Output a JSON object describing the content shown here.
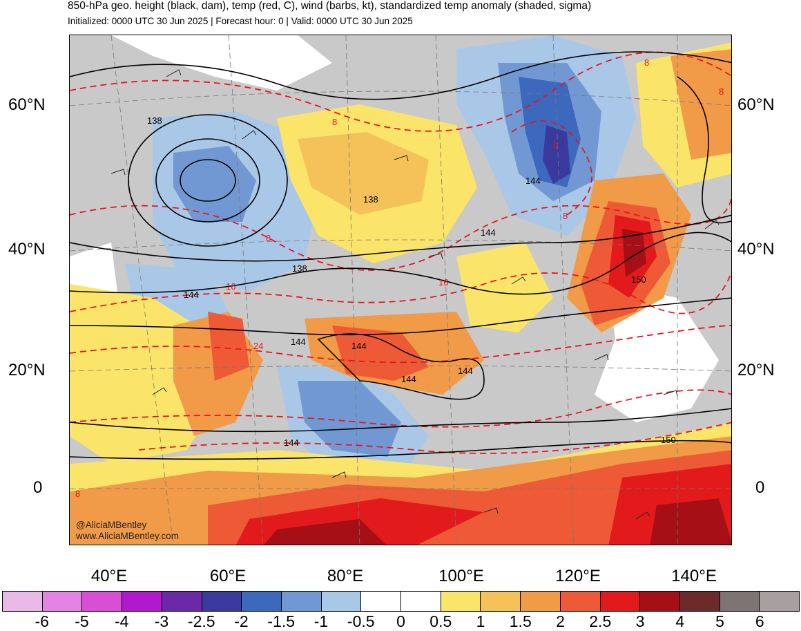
{
  "header": {
    "title": "850-hPa geo. height (black, dam), temp (red, C), wind (barbs, kt), standardized temp anomaly (shaded, sigma)",
    "subtitle": "Initialized: 0000 UTC 30 Jun 2025 | Forecast hour: 0 | Valid: 0000 UTC 30 Jun 2025"
  },
  "map": {
    "lat_labels_left": [
      "60°N",
      "40°N",
      "20°N",
      "0"
    ],
    "lat_labels_right": [
      "60°N",
      "40°N",
      "20°N",
      "0"
    ],
    "lon_labels": [
      "40°E",
      "60°E",
      "80°E",
      "100°E",
      "120°E",
      "140°E"
    ],
    "height_contour_labels": [
      "138",
      "138",
      "138",
      "144",
      "144",
      "144",
      "144",
      "144",
      "144",
      "144",
      "144",
      "150",
      "150"
    ],
    "temp_contour_labels": [
      "8",
      "8",
      "8",
      "8",
      "0",
      "16",
      "16",
      "24",
      "8",
      "8"
    ],
    "contour_colors": {
      "height": "#000000",
      "temperature": "#e8141c"
    }
  },
  "watermark": {
    "line1": "@AliciaMBentley",
    "line2": "www.AliciaMBentley.com"
  },
  "colorbar": {
    "tick_labels": [
      "-6",
      "-5",
      "-4",
      "-3",
      "-2.5",
      "-2",
      "-1.5",
      "-1",
      "-0.5",
      "0",
      "0.5",
      "1",
      "1.5",
      "2",
      "2.5",
      "3",
      "4",
      "5",
      "6"
    ],
    "colors": [
      "#e9b9e8",
      "#e483e3",
      "#d84fd6",
      "#b118cf",
      "#6a29a8",
      "#3a3a9e",
      "#3c68bd",
      "#7198d2",
      "#a9c8e8",
      "#ffffff",
      "#ffffff",
      "#fbe46a",
      "#f5c25a",
      "#f19a47",
      "#ef5a36",
      "#e31a1c",
      "#a50f15",
      "#6d2a2a",
      "#7f7474",
      "#a8a0a0"
    ]
  }
}
